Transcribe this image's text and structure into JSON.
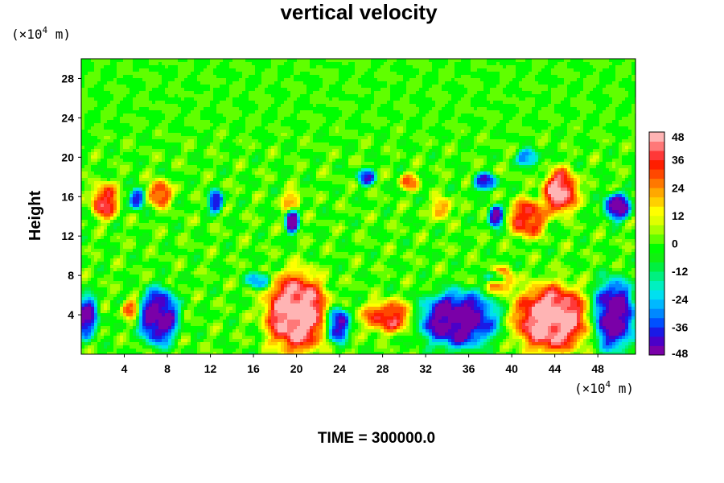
{
  "chart_data": {
    "type": "heatmap",
    "title": "vertical velocity",
    "ylabel": "Height",
    "x_unit": "(×10",
    "y_unit": "(×10",
    "unit_exponent": "4",
    "unit_suffix": " m)",
    "xlim": [
      0,
      51.5
    ],
    "ylim": [
      0,
      30
    ],
    "xticks": [
      4,
      8,
      12,
      16,
      20,
      24,
      28,
      32,
      36,
      40,
      44,
      48
    ],
    "yticks": [
      4,
      8,
      12,
      16,
      20,
      24,
      28
    ],
    "time_label": "TIME = 300000.0",
    "colorbar": {
      "range": [
        -48,
        48
      ],
      "ticks": [
        48,
        36,
        24,
        12,
        0,
        -12,
        -24,
        -36,
        -48
      ],
      "levels": 24,
      "colors": [
        "#7a00a8",
        "#4b00c8",
        "#1a1ae6",
        "#0050ff",
        "#0088ff",
        "#00b8ff",
        "#00e0f0",
        "#00f0c0",
        "#00f080",
        "#00f040",
        "#10f010",
        "#00ff00",
        "#60ff00",
        "#a8ff00",
        "#e0ff00",
        "#ffff00",
        "#ffd000",
        "#ffa800",
        "#ff7800",
        "#ff4800",
        "#ff1e00",
        "#ff3838",
        "#ff7878",
        "#ffb4b4"
      ]
    },
    "features": [
      {
        "x": 20,
        "y": 4.2,
        "rx": 3.2,
        "ry": 4.5,
        "w": 48
      },
      {
        "x": 43.7,
        "y": 3.6,
        "rx": 3.8,
        "ry": 3.8,
        "w": 48
      },
      {
        "x": 28.5,
        "y": 3.8,
        "rx": 2.6,
        "ry": 1.8,
        "w": 34
      },
      {
        "x": 4.6,
        "y": 4.6,
        "rx": 0.9,
        "ry": 1.0,
        "w": 30
      },
      {
        "x": 7.2,
        "y": 3.8,
        "rx": 2.0,
        "ry": 3.2,
        "w": -48
      },
      {
        "x": 35,
        "y": 3.5,
        "rx": 4.0,
        "ry": 3.2,
        "w": -48
      },
      {
        "x": 49.5,
        "y": 4.0,
        "rx": 2.2,
        "ry": 4.0,
        "w": -48
      },
      {
        "x": 0.5,
        "y": 3.8,
        "rx": 1.2,
        "ry": 2.5,
        "w": -42
      },
      {
        "x": 23.8,
        "y": 3.0,
        "rx": 1.2,
        "ry": 2.0,
        "w": -44
      },
      {
        "x": 39,
        "y": 7.5,
        "rx": 1.4,
        "ry": 1.5,
        "w": 28
      },
      {
        "x": 2.2,
        "y": 15.5,
        "rx": 1.4,
        "ry": 2.0,
        "w": 36
      },
      {
        "x": 7.3,
        "y": 16.3,
        "rx": 1.2,
        "ry": 1.5,
        "w": 34
      },
      {
        "x": 44.5,
        "y": 16.5,
        "rx": 1.8,
        "ry": 2.5,
        "w": 44
      },
      {
        "x": 41.5,
        "y": 13.8,
        "rx": 1.8,
        "ry": 2.2,
        "w": 36
      },
      {
        "x": 33.5,
        "y": 14.8,
        "rx": 1.0,
        "ry": 1.2,
        "w": 24
      },
      {
        "x": 30.5,
        "y": 17.5,
        "rx": 1.0,
        "ry": 1.0,
        "w": 24
      },
      {
        "x": 19.5,
        "y": 15.5,
        "rx": 1.0,
        "ry": 1.2,
        "w": 22
      },
      {
        "x": 5.2,
        "y": 15.8,
        "rx": 0.8,
        "ry": 1.2,
        "w": -40
      },
      {
        "x": 12.5,
        "y": 15.5,
        "rx": 0.8,
        "ry": 1.3,
        "w": -38
      },
      {
        "x": 19.6,
        "y": 13.5,
        "rx": 0.7,
        "ry": 1.5,
        "w": -46
      },
      {
        "x": 26.5,
        "y": 18.0,
        "rx": 1.0,
        "ry": 1.0,
        "w": -34
      },
      {
        "x": 37.5,
        "y": 17.5,
        "rx": 1.3,
        "ry": 1.0,
        "w": -36
      },
      {
        "x": 38.5,
        "y": 14.0,
        "rx": 0.8,
        "ry": 1.2,
        "w": -46
      },
      {
        "x": 49.8,
        "y": 15.0,
        "rx": 1.4,
        "ry": 1.6,
        "w": -46
      },
      {
        "x": 41.5,
        "y": 20.0,
        "rx": 1.2,
        "ry": 1.0,
        "w": -30
      },
      {
        "x": 38.5,
        "y": 7.8,
        "rx": 1.0,
        "ry": 0.7,
        "w": -32
      },
      {
        "x": 16.5,
        "y": 7.5,
        "rx": 1.2,
        "ry": 1.0,
        "w": -28
      }
    ]
  }
}
